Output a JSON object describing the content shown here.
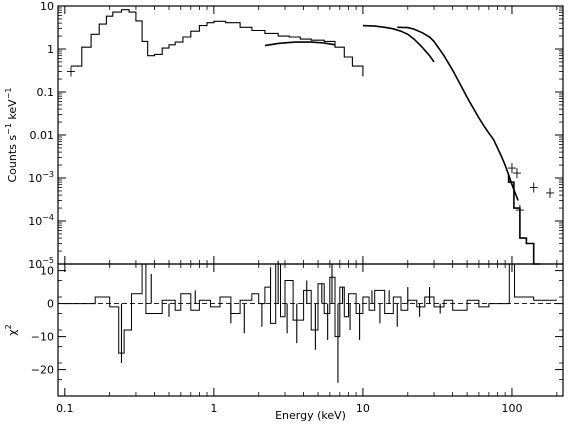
{
  "chart_data": [
    {
      "type": "line",
      "panel": "spectrum",
      "ylabel_parts": [
        "Counts s",
        "−1",
        " keV",
        "−1"
      ],
      "x_scale": "log",
      "y_scale": "log",
      "xlim": [
        0.09,
        220
      ],
      "ylim": [
        1e-05,
        10
      ],
      "y_ticks": [
        {
          "v": 10,
          "base": "10",
          "exp": ""
        },
        {
          "v": 1,
          "base": "1",
          "exp": ""
        },
        {
          "v": 0.1,
          "base": "0.1",
          "exp": ""
        },
        {
          "v": 0.01,
          "base": "0.01",
          "exp": ""
        },
        {
          "v": 0.001,
          "base": "10",
          "exp": "−3"
        },
        {
          "v": 0.0001,
          "base": "10",
          "exp": "−4"
        },
        {
          "v": 1e-05,
          "base": "10",
          "exp": "−5"
        }
      ],
      "series": [
        {
          "values": [
            [
              0.11,
              0.4
            ],
            [
              0.13,
              1.1
            ],
            [
              0.15,
              2.2
            ],
            [
              0.17,
              3.8
            ],
            [
              0.19,
              5.8
            ],
            [
              0.21,
              7.2
            ],
            [
              0.24,
              8.2
            ],
            [
              0.27,
              7.2
            ],
            [
              0.3,
              4.5
            ],
            [
              0.33,
              1.5
            ],
            [
              0.36,
              0.7
            ],
            [
              0.4,
              0.75
            ],
            [
              0.45,
              1.05
            ],
            [
              0.5,
              1.25
            ],
            [
              0.55,
              1.45
            ],
            [
              0.62,
              1.9
            ],
            [
              0.7,
              2.6
            ],
            [
              0.8,
              3.5
            ],
            [
              0.9,
              4.1
            ],
            [
              1.0,
              4.4
            ],
            [
              1.2,
              4.1
            ],
            [
              1.5,
              3.2
            ],
            [
              1.8,
              2.7
            ],
            [
              2.2,
              2.3
            ],
            [
              2.7,
              2.0
            ],
            [
              3.2,
              1.9
            ],
            [
              3.8,
              1.7
            ],
            [
              4.5,
              1.6
            ],
            [
              5.5,
              1.5
            ],
            [
              6.5,
              1.1
            ],
            [
              7.5,
              0.65
            ],
            [
              8.5,
              0.4
            ],
            [
              10.0,
              0.23
            ]
          ]
        },
        {
          "values": [
            [
              2.2,
              1.2
            ],
            [
              2.7,
              1.35
            ],
            [
              3.5,
              1.45
            ],
            [
              4.5,
              1.45
            ],
            [
              5.5,
              1.38
            ],
            [
              6.5,
              1.25
            ]
          ]
        },
        {
          "values": [
            [
              10.0,
              3.5
            ],
            [
              12.0,
              3.4
            ],
            [
              14.0,
              3.2
            ],
            [
              16.0,
              2.95
            ],
            [
              18.0,
              2.6
            ],
            [
              20.0,
              2.2
            ],
            [
              22.0,
              1.7
            ],
            [
              25.0,
              1.1
            ],
            [
              28.0,
              0.7
            ],
            [
              30.0,
              0.5
            ]
          ]
        },
        {
          "values": [
            [
              17.0,
              3.2
            ],
            [
              20.0,
              3.15
            ],
            [
              22.0,
              2.9
            ],
            [
              25.0,
              2.4
            ],
            [
              28.0,
              1.9
            ],
            [
              30.0,
              1.5
            ],
            [
              35.0,
              0.7
            ],
            [
              40.0,
              0.32
            ],
            [
              45.0,
              0.15
            ],
            [
              50.0,
              0.075
            ],
            [
              55.0,
              0.042
            ],
            [
              60.0,
              0.025
            ],
            [
              65.0,
              0.016
            ],
            [
              70.0,
              0.011
            ],
            [
              75.0,
              0.008
            ],
            [
              80.0,
              0.005
            ],
            [
              85.0,
              0.0032
            ],
            [
              90.0,
              0.002
            ],
            [
              95.0,
              0.0012
            ],
            [
              100.0,
              0.0007
            ],
            [
              105.0,
              0.00045
            ],
            [
              110.0,
              0.0003
            ]
          ]
        },
        {
          "values": [
            [
              95.0,
              0.0012
            ],
            [
              95.0,
              0.0008
            ],
            [
              103.0,
              0.0008
            ],
            [
              103.0,
              0.0002
            ],
            [
              113.0,
              0.0002
            ],
            [
              113.0,
              4e-05
            ],
            [
              125.0,
              4e-05
            ],
            [
              125.0,
              3e-05
            ],
            [
              140.0,
              3e-05
            ],
            [
              140.0,
              1e-05
            ],
            [
              155.0,
              1e-05
            ]
          ]
        }
      ],
      "points": [
        {
          "x": 0.11,
          "y": 0.3
        },
        {
          "x": 100.0,
          "y": 0.0017
        },
        {
          "x": 108.0,
          "y": 0.0013
        },
        {
          "x": 113.0,
          "y": 0.00018
        },
        {
          "x": 140.0,
          "y": 0.0006
        },
        {
          "x": 180.0,
          "y": 0.00045
        }
      ]
    },
    {
      "type": "line",
      "panel": "residuals",
      "ylabel_parts": [
        "χ",
        "2"
      ],
      "x_scale": "log",
      "xlim": [
        0.09,
        220
      ],
      "ylim": [
        -28,
        12
      ],
      "y_ticks": [
        {
          "v": 10,
          "label": "10"
        },
        {
          "v": 0,
          "label": "0"
        },
        {
          "v": -10,
          "label": "−10"
        },
        {
          "v": -20,
          "label": "−20"
        }
      ],
      "baseline": 0,
      "step_series": [
        [
          0.1,
          0
        ],
        [
          0.15,
          0
        ],
        [
          0.16,
          2
        ],
        [
          0.19,
          2
        ],
        [
          0.2,
          -1
        ],
        [
          0.22,
          -1
        ],
        [
          0.23,
          -15
        ],
        [
          0.24,
          -15
        ],
        [
          0.25,
          -8
        ],
        [
          0.27,
          -8
        ],
        [
          0.28,
          3
        ],
        [
          0.32,
          3
        ],
        [
          0.33,
          12
        ],
        [
          0.34,
          12
        ],
        [
          0.35,
          -3
        ],
        [
          0.4,
          -3
        ],
        [
          0.45,
          1
        ],
        [
          0.55,
          -2
        ],
        [
          0.6,
          3
        ],
        [
          0.7,
          -2
        ],
        [
          0.8,
          1
        ],
        [
          0.95,
          -1
        ],
        [
          1.1,
          2
        ],
        [
          1.3,
          -3
        ],
        [
          1.5,
          1
        ],
        [
          1.8,
          3
        ],
        [
          2.0,
          0
        ],
        [
          2.2,
          5
        ],
        [
          2.4,
          -6
        ],
        [
          2.6,
          12
        ],
        [
          2.8,
          -4
        ],
        [
          3.0,
          7
        ],
        [
          3.4,
          -5
        ],
        [
          4.0,
          4
        ],
        [
          4.5,
          -8
        ],
        [
          5.0,
          6
        ],
        [
          5.5,
          -3
        ],
        [
          6.0,
          8
        ],
        [
          6.5,
          -10
        ],
        [
          7.0,
          5
        ],
        [
          7.5,
          -4
        ],
        [
          8.0,
          3
        ],
        [
          9.0,
          -3
        ],
        [
          10.0,
          2
        ],
        [
          11.0,
          -2
        ],
        [
          12.0,
          4
        ],
        [
          14.0,
          -3
        ],
        [
          16.0,
          2
        ],
        [
          18.0,
          -2
        ],
        [
          20.0,
          1
        ],
        [
          23.0,
          -1
        ],
        [
          26.0,
          2
        ],
        [
          30.0,
          -1
        ],
        [
          35.0,
          1
        ],
        [
          40.0,
          -2
        ],
        [
          50.0,
          1
        ],
        [
          60.0,
          -1
        ],
        [
          70.0,
          0
        ],
        [
          80.0,
          0
        ],
        [
          90.0,
          0
        ],
        [
          96.0,
          0
        ],
        [
          96.0,
          12
        ],
        [
          104.0,
          12
        ],
        [
          104.0,
          2
        ],
        [
          140.0,
          2
        ],
        [
          140.0,
          1
        ],
        [
          200.0,
          1
        ]
      ],
      "spikes": [
        [
          0.24,
          -18
        ],
        [
          0.38,
          9
        ],
        [
          0.5,
          -4
        ],
        [
          0.75,
          4
        ],
        [
          1.3,
          -6
        ],
        [
          1.6,
          -9
        ],
        [
          2.1,
          -7
        ],
        [
          2.4,
          11
        ],
        [
          2.7,
          13
        ],
        [
          3.1,
          -9
        ],
        [
          3.6,
          -12
        ],
        [
          4.2,
          7
        ],
        [
          4.8,
          -14
        ],
        [
          5.3,
          6
        ],
        [
          5.8,
          -11
        ],
        [
          6.2,
          12
        ],
        [
          6.8,
          -24
        ],
        [
          7.3,
          5
        ],
        [
          8.2,
          -8
        ],
        [
          9.5,
          -11
        ],
        [
          11.5,
          4
        ],
        [
          13.0,
          -6
        ],
        [
          15.0,
          4
        ],
        [
          17.0,
          -7
        ],
        [
          20.0,
          5
        ],
        [
          24.0,
          -4
        ],
        [
          28.0,
          5
        ],
        [
          33.0,
          -3
        ]
      ]
    }
  ],
  "x_ticks": [
    {
      "v": 0.1,
      "label": "0.1"
    },
    {
      "v": 1,
      "label": "1"
    },
    {
      "v": 10,
      "label": "10"
    },
    {
      "v": 100,
      "label": "100"
    }
  ],
  "xlabel": "Energy (keV)"
}
